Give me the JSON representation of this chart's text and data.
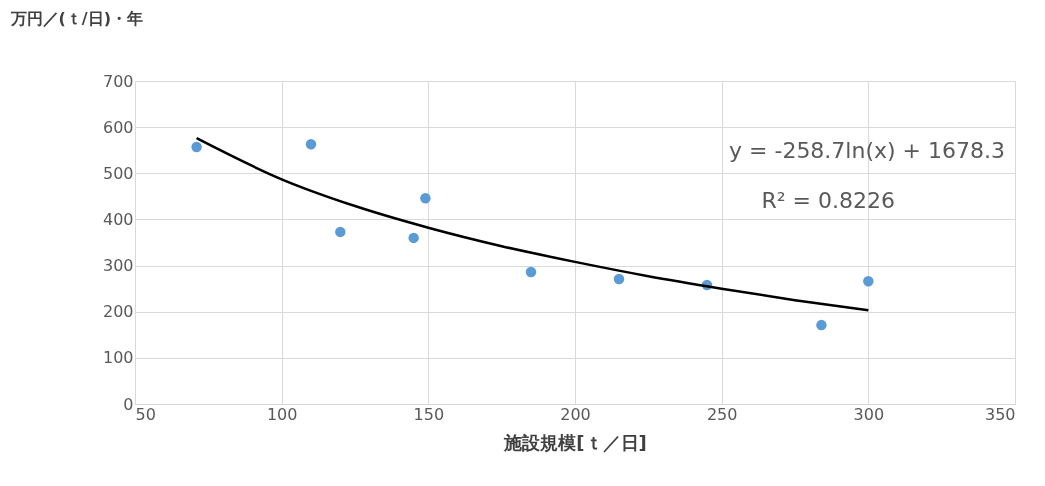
{
  "chart_data": {
    "type": "scatter",
    "xlabel": "施設規模[ｔ／日]",
    "ylabel": "万円／(ｔ/日)・年",
    "xlim": [
      50,
      350
    ],
    "xticks": [
      50,
      100,
      150,
      200,
      250,
      300,
      350
    ],
    "ylim": [
      0,
      700
    ],
    "yticks": [
      0,
      100,
      200,
      300,
      400,
      500,
      600,
      700
    ],
    "grid": true,
    "series": [
      {
        "color": "#5b9bd5",
        "marker": "circle",
        "x": [
          71,
          110,
          120,
          145,
          149,
          185,
          215,
          245,
          284,
          300
        ],
        "values": [
          557,
          563,
          373,
          360,
          446,
          286,
          271,
          258,
          171,
          266
        ]
      },
      {
        "type": "line",
        "color": "#000000",
        "marker": "none",
        "line_style": "solid",
        "x": [
          71,
          100,
          125,
          150,
          175,
          200,
          225,
          250,
          275,
          300
        ],
        "values": [
          576,
          487,
          429,
          382,
          342,
          308,
          277,
          250,
          225,
          203
        ]
      }
    ],
    "annotations": [
      "y = -258.7ln(x) + 1678.3",
      "R² = 0.8226"
    ]
  }
}
